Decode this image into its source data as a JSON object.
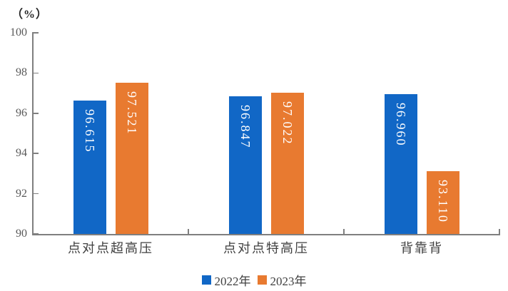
{
  "unit_label": "（%）",
  "colors": {
    "series_2022": "#1167C6",
    "series_2023": "#E87A30",
    "axis": "#7F7F7F",
    "y_tick_label": "#595959",
    "category_label": "#404040",
    "value_label": "#FFFFFF",
    "legend_text": "#404040",
    "background": "#FFFFFF"
  },
  "chart_data": {
    "type": "bar",
    "title": "",
    "unit": "（%）",
    "categories": [
      "点对点超高压",
      "点对点特高压",
      "背靠背"
    ],
    "series": [
      {
        "name": "2022年",
        "color": "#1167C6",
        "values": [
          96.615,
          96.847,
          96.96
        ]
      },
      {
        "name": "2023年",
        "color": "#E87A30",
        "values": [
          97.521,
          97.022,
          93.11
        ]
      }
    ],
    "value_label_decimals": 3,
    "ylim": [
      90,
      100
    ],
    "yticks": [
      100,
      98,
      96,
      94,
      92,
      90
    ],
    "grid": false,
    "legend_position": "bottom"
  }
}
